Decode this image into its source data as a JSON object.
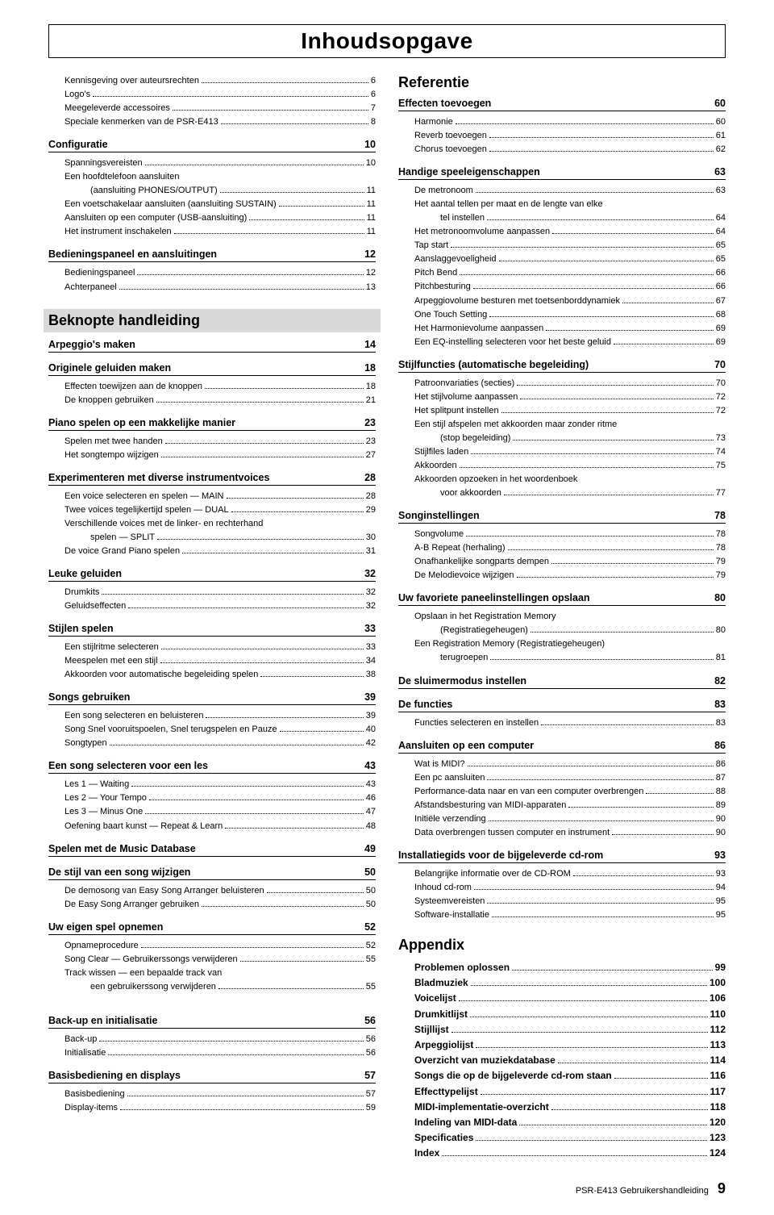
{
  "title": "Inhoudsopgave",
  "footer_text": "PSR-E413  Gebruikershandleiding",
  "footer_page": "9",
  "left": {
    "intro": [
      {
        "label": "Kennisgeving over auteursrechten",
        "page": "6"
      },
      {
        "label": "Logo's",
        "page": "6"
      },
      {
        "label": "Meegeleverde accessoires",
        "page": "7"
      },
      {
        "label": "Speciale kenmerken van de PSR-E413",
        "page": "8"
      }
    ],
    "s1": {
      "title": "Configuratie",
      "page": "10",
      "items": [
        {
          "label": "Spanningsvereisten",
          "page": "10"
        },
        {
          "label": "Een hoofdtelefoon aansluiten",
          "cont": "(aansluiting PHONES/OUTPUT)",
          "page": "11"
        },
        {
          "label": "Een voetschakelaar aansluiten (aansluiting SUSTAIN)",
          "page": "11"
        },
        {
          "label": "Aansluiten op een computer (USB-aansluiting)",
          "page": "11"
        },
        {
          "label": "Het instrument inschakelen",
          "page": "11"
        }
      ]
    },
    "s2": {
      "title": "Bedieningspaneel en aansluitingen",
      "page": "12",
      "items": [
        {
          "label": "Bedieningspaneel",
          "page": "12"
        },
        {
          "label": "Achterpaneel",
          "page": "13"
        }
      ]
    },
    "h_beknopte": "Beknopte handleiding",
    "s3": {
      "title": "Arpeggio's maken",
      "page": "14"
    },
    "s4": {
      "title": "Originele geluiden maken",
      "page": "18",
      "items": [
        {
          "label": "Effecten toewijzen aan de knoppen",
          "page": "18"
        },
        {
          "label": "De knoppen gebruiken",
          "page": "21"
        }
      ]
    },
    "s5": {
      "title": "Piano spelen op een makkelijke manier",
      "page": "23",
      "items": [
        {
          "label": "Spelen met twee handen",
          "page": "23"
        },
        {
          "label": "Het songtempo wijzigen",
          "page": "27"
        }
      ]
    },
    "s6": {
      "title": "Experimenteren met diverse instrumentvoices",
      "page": "28",
      "items": [
        {
          "label": "Een voice selecteren en spelen — MAIN",
          "page": "28"
        },
        {
          "label": "Twee voices tegelijkertijd spelen — DUAL",
          "page": "29"
        },
        {
          "label": "Verschillende voices met de linker- en rechterhand",
          "cont": "spelen — SPLIT",
          "page": "30"
        },
        {
          "label": "De voice Grand Piano spelen",
          "page": "31"
        }
      ]
    },
    "s7": {
      "title": "Leuke geluiden",
      "page": "32",
      "items": [
        {
          "label": "Drumkits",
          "page": "32"
        },
        {
          "label": "Geluidseffecten",
          "page": "32"
        }
      ]
    },
    "s8": {
      "title": "Stijlen spelen",
      "page": "33",
      "items": [
        {
          "label": "Een stijlritme selecteren",
          "page": "33"
        },
        {
          "label": "Meespelen met een stijl",
          "page": "34"
        },
        {
          "label": "Akkoorden voor automatische begeleiding spelen",
          "page": "38"
        }
      ]
    },
    "s9": {
      "title": "Songs gebruiken",
      "page": "39",
      "items": [
        {
          "label": "Een song selecteren en beluisteren",
          "page": "39"
        },
        {
          "label": "Song Snel vooruitspoelen, Snel terugspelen en Pauze",
          "page": "40"
        },
        {
          "label": "Songtypen",
          "page": "42"
        }
      ]
    },
    "s10": {
      "title": "Een song selecteren voor een les",
      "page": "43",
      "items": [
        {
          "label": "Les 1 — Waiting",
          "page": "43"
        },
        {
          "label": "Les 2 — Your Tempo",
          "page": "46"
        },
        {
          "label": "Les 3 — Minus One",
          "page": "47"
        },
        {
          "label": "Oefening baart kunst — Repeat & Learn",
          "page": "48"
        }
      ]
    },
    "s11": {
      "title": "Spelen met de Music Database",
      "page": "49"
    },
    "s12": {
      "title": "De stijl van een song wijzigen",
      "page": "50",
      "items": [
        {
          "label": "De demosong van Easy Song Arranger beluisteren",
          "page": "50"
        },
        {
          "label": "De Easy Song Arranger gebruiken",
          "page": "50"
        }
      ]
    },
    "s13": {
      "title": "Uw eigen spel opnemen",
      "page": "52",
      "items": [
        {
          "label": "Opnameprocedure",
          "page": "52"
        },
        {
          "label": "Song Clear — Gebruikerssongs verwijderen",
          "page": "55"
        },
        {
          "label": "Track wissen — een bepaalde track van",
          "cont": "een gebruikerssong verwijderen",
          "page": "55"
        }
      ]
    },
    "s14": {
      "title": "Back-up en initialisatie",
      "page": "56",
      "items": [
        {
          "label": "Back-up",
          "page": "56"
        },
        {
          "label": "Initialisatie",
          "page": "56"
        }
      ]
    },
    "s15": {
      "title": "Basisbediening en displays",
      "page": "57",
      "items": [
        {
          "label": "Basisbediening",
          "page": "57"
        },
        {
          "label": "Display-items",
          "page": "59"
        }
      ]
    }
  },
  "right": {
    "h_ref": "Referentie",
    "r1": {
      "title": "Effecten toevoegen",
      "page": "60",
      "items": [
        {
          "label": "Harmonie",
          "page": "60"
        },
        {
          "label": "Reverb toevoegen",
          "page": "61"
        },
        {
          "label": "Chorus toevoegen",
          "page": "62"
        }
      ]
    },
    "r2": {
      "title": "Handige speeleigenschappen",
      "page": "63",
      "items": [
        {
          "label": "De metronoom",
          "page": "63"
        },
        {
          "label": "Het aantal tellen per maat en de lengte van elke",
          "cont": "tel instellen",
          "page": "64"
        },
        {
          "label": "Het metronoomvolume aanpassen",
          "page": "64"
        },
        {
          "label": "Tap start",
          "page": "65"
        },
        {
          "label": "Aanslaggevoeligheid",
          "page": "65"
        },
        {
          "label": "Pitch Bend",
          "page": "66"
        },
        {
          "label": "Pitchbesturing",
          "page": "66"
        },
        {
          "label": "Arpeggiovolume besturen met toetsenborddynamiek",
          "page": "67"
        },
        {
          "label": "One Touch Setting",
          "page": "68"
        },
        {
          "label": "Het Harmonievolume aanpassen",
          "page": "69"
        },
        {
          "label": "Een EQ-instelling selecteren voor het beste geluid",
          "page": "69"
        }
      ]
    },
    "r3": {
      "title": "Stijlfuncties (automatische begeleiding)",
      "page": "70",
      "items": [
        {
          "label": "Patroonvariaties (secties)",
          "page": "70"
        },
        {
          "label": "Het stijlvolume aanpassen",
          "page": "72"
        },
        {
          "label": "Het splitpunt instellen",
          "page": "72"
        },
        {
          "label": "Een stijl afspelen met akkoorden maar zonder ritme",
          "cont": "(stop begeleiding)",
          "page": "73"
        },
        {
          "label": "Stijlfiles laden",
          "page": "74"
        },
        {
          "label": "Akkoorden",
          "page": "75"
        },
        {
          "label": "Akkoorden opzoeken in het woordenboek",
          "cont": "voor akkoorden",
          "page": "77"
        }
      ]
    },
    "r4": {
      "title": "Songinstellingen",
      "page": "78",
      "items": [
        {
          "label": "Songvolume",
          "page": "78"
        },
        {
          "label": "A-B Repeat (herhaling)",
          "page": "78"
        },
        {
          "label": "Onafhankelijke songparts dempen",
          "page": "79"
        },
        {
          "label": "De Melodievoice wijzigen",
          "page": "79"
        }
      ]
    },
    "r5": {
      "title": "Uw favoriete paneelinstellingen opslaan",
      "page": "80",
      "items": [
        {
          "label": "Opslaan in het Registration Memory",
          "cont": "(Registratiegeheugen)",
          "page": "80"
        },
        {
          "label": "Een Registration Memory (Registratiegeheugen)",
          "cont": "terugroepen",
          "page": "81"
        }
      ]
    },
    "r6": {
      "title": "De sluimermodus instellen",
      "page": "82"
    },
    "r7": {
      "title": "De functies",
      "page": "83",
      "items": [
        {
          "label": "Functies selecteren en instellen",
          "page": "83"
        }
      ]
    },
    "r8": {
      "title": "Aansluiten op een computer",
      "page": "86",
      "items": [
        {
          "label": "Wat is MIDI?",
          "page": "86"
        },
        {
          "label": "Een pc aansluiten",
          "page": "87"
        },
        {
          "label": "Performance-data naar en van een computer overbrengen",
          "page": "88"
        },
        {
          "label": "Afstandsbesturing van MIDI-apparaten",
          "page": "89"
        },
        {
          "label": "Initiële verzending",
          "page": "90"
        },
        {
          "label": "Data overbrengen tussen computer en instrument",
          "page": "90"
        }
      ]
    },
    "r9": {
      "title": "Installatiegids voor de bijgeleverde cd-rom",
      "page": "93",
      "items": [
        {
          "label": "Belangrijke informatie over de CD-ROM",
          "page": "93"
        },
        {
          "label": "Inhoud cd-rom",
          "page": "94"
        },
        {
          "label": "Systeemvereisten",
          "page": "95"
        },
        {
          "label": "Software-installatie",
          "page": "95"
        }
      ]
    },
    "h_app": "Appendix",
    "appendix": [
      {
        "label": "Problemen oplossen",
        "page": "99"
      },
      {
        "label": "Bladmuziek",
        "page": "100"
      },
      {
        "label": "Voicelijst",
        "page": "106"
      },
      {
        "label": "Drumkitlijst",
        "page": "110"
      },
      {
        "label": "Stijllijst",
        "page": "112"
      },
      {
        "label": "Arpeggiolijst",
        "page": "113"
      },
      {
        "label": "Overzicht van muziekdatabase",
        "page": "114"
      },
      {
        "label": "Songs die op de bijgeleverde cd-rom staan",
        "page": "116"
      },
      {
        "label": "Effecttypelijst",
        "page": "117"
      },
      {
        "label": "MIDI-implementatie-overzicht",
        "page": "118"
      },
      {
        "label": "Indeling van MIDI-data",
        "page": "120"
      },
      {
        "label": "Specificaties",
        "page": "123"
      },
      {
        "label": "Index",
        "page": "124"
      }
    ]
  }
}
